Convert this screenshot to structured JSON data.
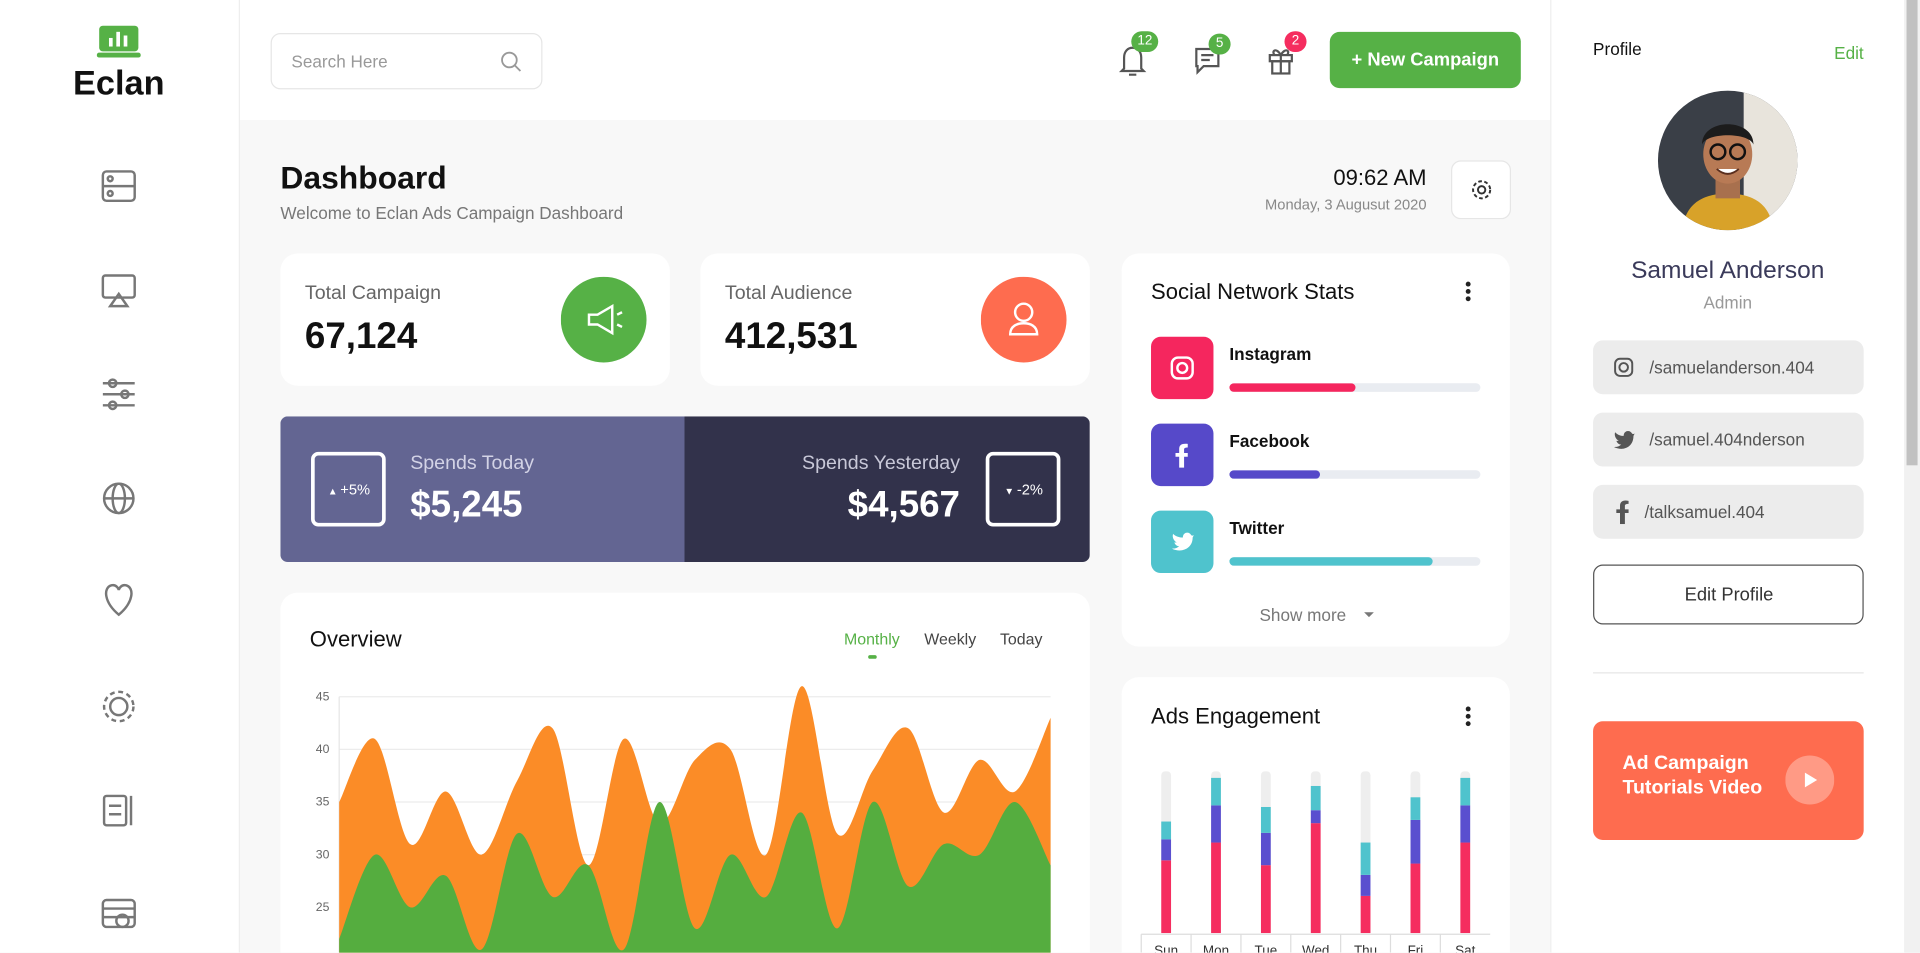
{
  "brand": "Eclan",
  "topbar": {
    "search_placeholder": "Search Here",
    "badges": [
      12,
      5,
      2
    ],
    "button": "+ New Campaign"
  },
  "header": {
    "title": "Dashboard",
    "subtitle": "Welcome to Eclan Ads Campaign Dashboard",
    "time": "09:62 AM",
    "date": "Monday, 3 Augusut 2020"
  },
  "stats": [
    {
      "label": "Total Campaign",
      "value": "67,124"
    },
    {
      "label": "Total Audience",
      "value": "412,531"
    }
  ],
  "spends": [
    {
      "label": "Spends Today",
      "value": "$5,245",
      "change": "+5%"
    },
    {
      "label": "Spends Yesterday",
      "value": "$4,567",
      "change": "-2%"
    }
  ],
  "overview": {
    "title": "Overview",
    "tabs": [
      "Monthly",
      "Weekly",
      "Today"
    ],
    "chart_data": {
      "type": "area",
      "ylim": [
        20,
        45
      ],
      "yticks": [
        25,
        30,
        35,
        40,
        45
      ],
      "grid": true,
      "series": [
        {
          "color": "#fb8c27",
          "values": [
            35,
            41,
            31,
            36,
            30,
            37,
            42,
            29,
            41,
            33,
            39,
            40,
            30,
            46,
            32,
            38,
            42,
            34,
            39,
            36,
            43
          ]
        },
        {
          "color": "#55ad3f",
          "values": [
            22,
            30,
            25,
            28,
            21,
            32,
            26,
            29,
            21,
            35,
            23,
            30,
            26,
            34,
            23,
            35,
            27,
            31,
            30,
            35,
            29
          ]
        }
      ]
    }
  },
  "social": {
    "title": "Social Network Stats",
    "show_more": "Show more",
    "items": [
      {
        "name": "Instagram",
        "color": "#f5265e",
        "progress": 50
      },
      {
        "name": "Facebook",
        "color": "#5649c9",
        "progress": 36
      },
      {
        "name": "Twitter",
        "color": "#4fc3cd",
        "progress": 81
      }
    ]
  },
  "ads": {
    "title": "Ads Engagement",
    "chart_data": {
      "type": "stacked-bar",
      "ylim": [
        0,
        100
      ],
      "categories": [
        "Sun",
        "Mon",
        "Tue",
        "Wed",
        "Thu",
        "Fri",
        "Sat"
      ],
      "series": [
        {
          "color": "#f52d5f",
          "values": [
            45,
            56,
            42,
            68,
            23,
            43,
            56
          ]
        },
        {
          "color": "#5a4fcf",
          "values": [
            13,
            23,
            20,
            8,
            13,
            27,
            23
          ]
        },
        {
          "color": "#4fc3cd",
          "values": [
            11,
            17,
            16,
            15,
            20,
            14,
            17
          ]
        }
      ]
    }
  },
  "profile": {
    "heading": "Profile",
    "edit": "Edit",
    "name": "Samuel Anderson",
    "role": "Admin",
    "links": [
      "/samuelanderson.404",
      "/samuel.404nderson",
      "/talksamuel.404"
    ],
    "button": "Edit Profile",
    "video": [
      "Ad Campaign",
      "Tutorials Video"
    ]
  }
}
